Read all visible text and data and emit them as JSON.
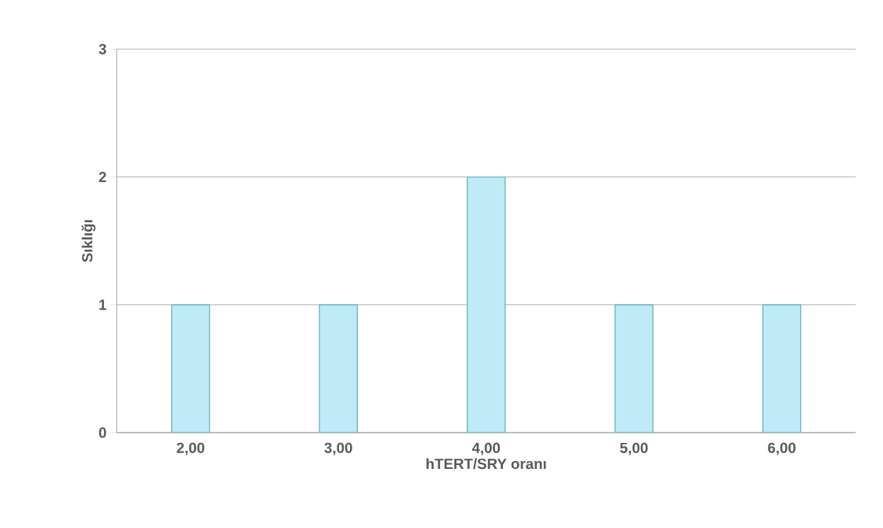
{
  "chart_data": {
    "type": "bar",
    "xlabel": "hTERT/SRY oranı",
    "ylabel": "Sıklığı",
    "categories": [
      "2,00",
      "3,00",
      "4,00",
      "5,00",
      "6,00"
    ],
    "values": [
      1,
      1,
      2,
      1,
      1
    ],
    "color": "#bfeaf7",
    "ylim": [
      0,
      3
    ],
    "yticks": [
      0,
      1,
      2,
      3
    ],
    "grid": "y"
  }
}
